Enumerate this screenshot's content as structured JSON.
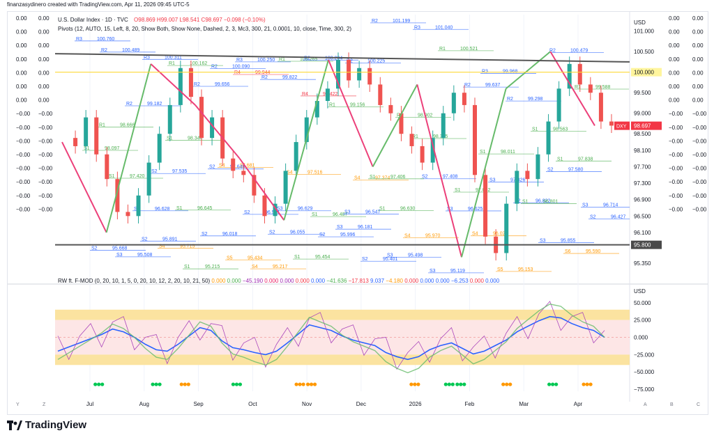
{
  "credit": "finanzasydinero created with TradingView.com, Apr 11, 2026 09:45 UTC-5",
  "header": {
    "symbol": "U.S. Dollar Index · 1D · TVC",
    "ohlc": "O98.869 H99.007 L98.541 C98.697 −0.098 (−0.10%)",
    "pivots": "Pivots (12, AUTO, 15, Left, 8, 20, Show Both, Show None, Dashed, 2, 3, Mc3, 300, 21, 0.0001, 10, close, Time, 300, 2)"
  },
  "osc_header": {
    "name": "RW ft. F-MOD (0, 20, 10, 1, 5, 0, 20, 10, 12, 2, 20, 10, 21, 50)",
    "values": [
      {
        "v": "0.000",
        "c": "#ff9800"
      },
      {
        "v": "0.000",
        "c": "#4caf50"
      },
      {
        "v": "−45.190",
        "c": "#9c27b0"
      },
      {
        "v": "0.000",
        "c": "#e91e63"
      },
      {
        "v": "0.000",
        "c": "#9c27b0"
      },
      {
        "v": "0.000",
        "c": "#f23645"
      },
      {
        "v": "0.000",
        "c": "#2962ff"
      },
      {
        "v": "−41.636",
        "c": "#4caf50"
      },
      {
        "v": "−17.813",
        "c": "#f23645"
      },
      {
        "v": "9.037",
        "c": "#2962ff"
      },
      {
        "v": "−4.180",
        "c": "#ff9800"
      },
      {
        "v": "0.000",
        "c": "#f23645"
      },
      {
        "v": "0.000",
        "c": "#2962ff"
      },
      {
        "v": "0.000",
        "c": "#2962ff"
      },
      {
        "v": "−6.253",
        "c": "#2962ff"
      },
      {
        "v": "0.000",
        "c": "#f23645"
      },
      {
        "v": "0.000",
        "c": "#2962ff"
      }
    ]
  },
  "right_axis": {
    "currency": "USD",
    "ticks": [
      "101.000",
      "100.500",
      "100.000",
      "99.500",
      "99.000",
      "98.500",
      "98.100",
      "97.700",
      "97.300",
      "96.900",
      "96.500",
      "96.100",
      "95.800",
      "95.350"
    ],
    "highlight_100": "100.000",
    "last_price": "98.697",
    "last_symbol": "DXY",
    "level_95800": "95.800"
  },
  "side_columns": {
    "left_a": [
      "0.00",
      "0.00",
      "0.00",
      "0.00",
      "0.00",
      "0.00",
      "0.00",
      "−0.00",
      "−0.00",
      "−0.00",
      "−0.00",
      "−0.00",
      "−0.00",
      "−0.00",
      "−0.00"
    ],
    "left_b": [
      "0.00",
      "0.00",
      "0.00",
      "0.00",
      "0.00",
      "0.00",
      "0.00",
      "−0.00",
      "−0.00",
      "−0.00",
      "−0.00",
      "−0.00",
      "−0.00",
      "−0.00",
      "−0.00"
    ],
    "right_a": [
      "0.00",
      "0.00",
      "0.00",
      "0.00",
      "0.00",
      "0.00",
      "0.00",
      "−0.00",
      "−0.00",
      "−0.00",
      "−0.00",
      "−0.00",
      "−0.00",
      "−0.00",
      "−0.00"
    ],
    "right_b": [
      "0.00",
      "0.00",
      "0.00",
      "0.00",
      "0.00",
      "0.00",
      "0.00",
      "−0.00",
      "−0.00",
      "−0.00",
      "−0.00",
      "−0.00",
      "−0.00",
      "−0.00",
      "−0.00"
    ]
  },
  "osc_axis": {
    "currency": "USD",
    "ticks": [
      "50.000",
      "25.000",
      "0.000",
      "−25.000",
      "−50.000",
      "−75.000"
    ]
  },
  "time_axis": [
    "Jul",
    "Aug",
    "Sep",
    "Oct",
    "Nov",
    "Dec",
    "2026",
    "Feb",
    "Mar",
    "Apr"
  ],
  "bottom_letters_left": [
    "Y",
    "Z"
  ],
  "bottom_letters_right": [
    "A",
    "B",
    "C"
  ],
  "brand": "TradingView",
  "pivot_labels": [
    {
      "t": "R3",
      "v": "100.760"
    },
    {
      "t": "R3",
      "v": "100.311"
    },
    {
      "t": "R2",
      "v": "100.090"
    },
    {
      "t": "R1",
      "v": "100.265"
    },
    {
      "t": "R2",
      "v": "100.225"
    },
    {
      "t": "R3",
      "v": "101.040"
    },
    {
      "t": "R3",
      "v": "99.968"
    },
    {
      "t": "R2",
      "v": "100.479"
    },
    {
      "t": "R2",
      "v": "100.489"
    },
    {
      "t": "R1",
      "v": "100.162"
    },
    {
      "t": "R3",
      "v": "100.250"
    },
    {
      "t": "R2",
      "v": "100.294"
    },
    {
      "t": "R2",
      "v": "101.199"
    },
    {
      "t": "R1",
      "v": "100.521"
    },
    {
      "t": "R2",
      "v": "99.298"
    },
    {
      "t": "R1",
      "v": "99.588"
    },
    {
      "t": "R2",
      "v": "99.182"
    },
    {
      "t": "R2",
      "v": "99.656"
    },
    {
      "t": "R2",
      "v": "99.822"
    },
    {
      "t": "R1",
      "v": "99.156"
    },
    {
      "t": "R1",
      "v": "98.902"
    },
    {
      "t": "R2",
      "v": "99.637"
    },
    {
      "t": "S1",
      "v": "98.563"
    },
    {
      "t": "S1",
      "v": "98.097"
    },
    {
      "t": "S2",
      "v": "97.535"
    },
    {
      "t": "S4",
      "v": "97.681"
    },
    {
      "t": "S4",
      "v": "97.516"
    },
    {
      "t": "S4",
      "v": "97.374"
    },
    {
      "t": "S2",
      "v": "97.408"
    },
    {
      "t": "S3",
      "v": "97.326"
    },
    {
      "t": "S1",
      "v": "97.838"
    },
    {
      "t": "S1",
      "v": "97.420"
    },
    {
      "t": "S1",
      "v": "96.645"
    },
    {
      "t": "S2",
      "v": "96.541"
    },
    {
      "t": "S1",
      "v": "96.487"
    },
    {
      "t": "S1",
      "v": "96.630"
    },
    {
      "t": "S3",
      "v": "96.625"
    },
    {
      "t": "S2",
      "v": "96.822"
    },
    {
      "t": "S3",
      "v": "96.714"
    },
    {
      "t": "S3",
      "v": "96.628"
    },
    {
      "t": "S2",
      "v": "96.018"
    },
    {
      "t": "S2",
      "v": "96.055"
    },
    {
      "t": "S3",
      "v": "96.181"
    },
    {
      "t": "S4",
      "v": "95.970"
    },
    {
      "t": "S4",
      "v": "96.020"
    },
    {
      "t": "S3",
      "v": "95.855"
    },
    {
      "t": "S2",
      "v": "95.668"
    },
    {
      "t": "S4",
      "v": "95.715"
    },
    {
      "t": "S5",
      "v": "95.434"
    },
    {
      "t": "S1",
      "v": "95.454"
    },
    {
      "t": "S2",
      "v": "95.401"
    },
    {
      "t": "S3",
      "v": "95.119"
    },
    {
      "t": "S5",
      "v": "95.153"
    },
    {
      "t": "S6",
      "v": "95.590"
    },
    {
      "t": "S3",
      "v": "95.508"
    },
    {
      "t": "S1",
      "v": "95.215"
    },
    {
      "t": "S4",
      "v": "95.217"
    },
    {
      "t": "S2",
      "v": "95.996"
    },
    {
      "t": "S3",
      "v": "95.498"
    },
    {
      "t": "S1",
      "v": "97.082"
    },
    {
      "t": "S1",
      "v": "96.801"
    },
    {
      "t": "S2",
      "v": "96.427"
    },
    {
      "t": "S2",
      "v": "95.891"
    },
    {
      "t": "S2",
      "v": "97.646"
    },
    {
      "t": "S3",
      "v": "96.629"
    },
    {
      "t": "S3",
      "v": "96.547"
    },
    {
      "t": "R1",
      "v": "98.385"
    },
    {
      "t": "S1",
      "v": "98.011"
    },
    {
      "t": "S2",
      "v": "97.580"
    },
    {
      "t": "R1",
      "v": "98.666"
    },
    {
      "t": "S1",
      "v": "98.344"
    },
    {
      "t": "R4",
      "v": "99.944"
    },
    {
      "t": "R4",
      "v": "99.422"
    },
    {
      "t": "S1",
      "v": "97.406"
    }
  ],
  "chart_data": {
    "type": "candlestick",
    "x_axis": [
      "Jul",
      "Aug",
      "Sep",
      "Oct",
      "Nov",
      "Dec",
      "2026",
      "Feb",
      "Mar",
      "Apr"
    ],
    "price_ylim": [
      95.1,
      101.4
    ],
    "swing_points": [
      {
        "x": "Jun",
        "y": 98.3
      },
      {
        "x": "Jul",
        "y": 96.1
      },
      {
        "x": "Aug",
        "y": 100.2
      },
      {
        "x": "Aug",
        "y": 99.2
      },
      {
        "x": "Sep",
        "y": 97.9
      },
      {
        "x": "Sep",
        "y": 96.4
      },
      {
        "x": "Nov",
        "y": 100.3
      },
      {
        "x": "Dec",
        "y": 97.7
      },
      {
        "x": "Jan",
        "y": 99.7
      },
      {
        "x": "Jan",
        "y": 95.5
      },
      {
        "x": "Mar",
        "y": 99.6
      },
      {
        "x": "Mar",
        "y": 100.5
      },
      {
        "x": "Apr",
        "y": 98.7
      }
    ],
    "close_path": [
      98.4,
      98.2,
      98.9,
      98.0,
      97.4,
      96.6,
      96.5,
      97.0,
      97.8,
      98.5,
      99.2,
      100.1,
      99.4,
      98.4,
      98.9,
      97.9,
      97.6,
      97.5,
      97.0,
      96.5,
      96.8,
      97.6,
      98.3,
      98.9,
      99.3,
      99.6,
      100.3,
      99.8,
      100.1,
      99.7,
      99.2,
      99.0,
      98.5,
      98.2,
      97.8,
      98.4,
      99.0,
      99.5,
      99.2,
      97.5,
      96.0,
      95.6,
      96.8,
      97.6,
      97.4,
      98.0,
      98.8,
      99.6,
      100.2,
      99.7,
      99.5,
      98.8,
      98.7
    ],
    "trend_line": {
      "from": "Jun",
      "to": "Apr",
      "y": [
        100.45,
        100.25
      ]
    },
    "horizontal_levels": [
      100.0,
      95.8
    ],
    "last_price": 98.697,
    "oscillator": {
      "ylim": [
        -78,
        72
      ],
      "bands": [
        [
          25,
          40
        ],
        [
          -40,
          -25
        ]
      ],
      "main_line": [
        -20,
        -14,
        -8,
        -2,
        4,
        12,
        8,
        0,
        -10,
        -18,
        -20,
        -10,
        2,
        14,
        10,
        -5,
        -15,
        -18,
        -22,
        -25,
        -20,
        -8,
        5,
        18,
        14,
        10,
        2,
        -4,
        -8,
        -12,
        -22,
        -28,
        -32,
        -28,
        -18,
        -12,
        -8,
        -16,
        -24,
        -20,
        -12,
        -4,
        8,
        16,
        24,
        30,
        28,
        20,
        14,
        10,
        0
      ]
    }
  }
}
